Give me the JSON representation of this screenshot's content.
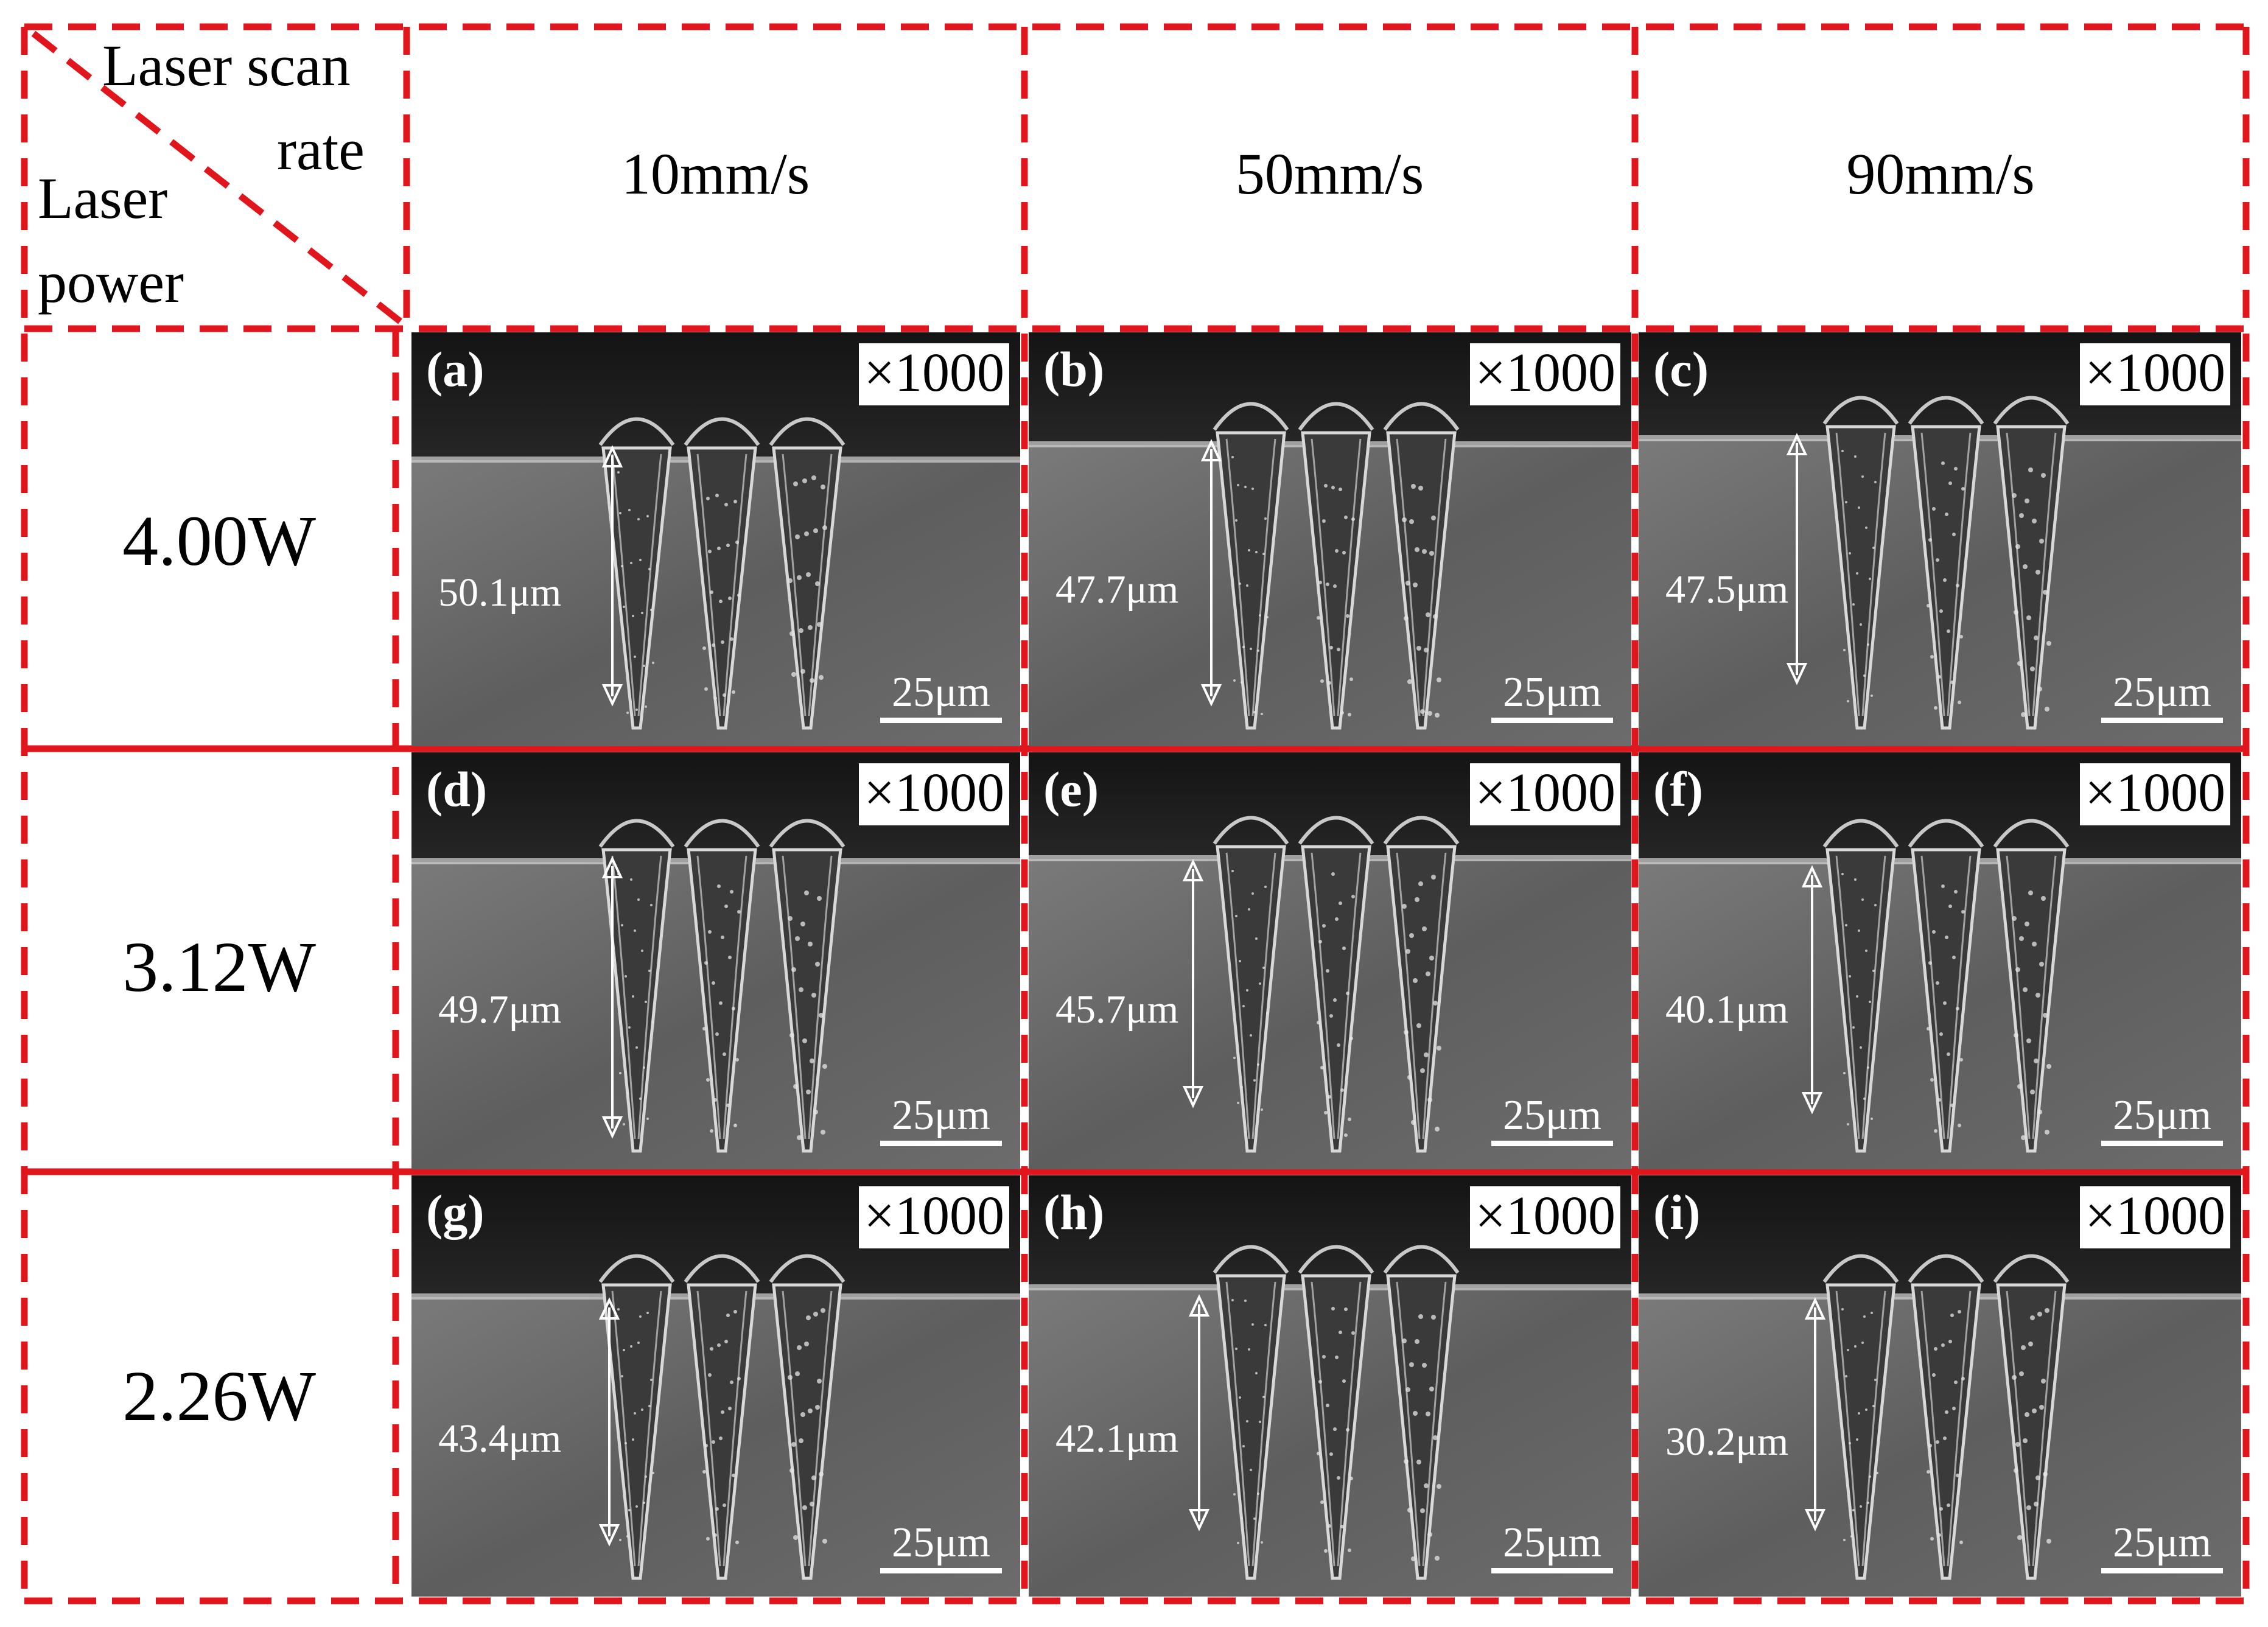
{
  "corner": {
    "row_header": "Laser scan",
    "row_header_2": "rate",
    "col_header": "Laser",
    "col_header_2": "power"
  },
  "scan_rates": [
    "10mm/s",
    "50mm/s",
    "90mm/s"
  ],
  "powers": [
    "4.00W",
    "3.12W",
    "2.26W"
  ],
  "panels": [
    {
      "label": "(a)",
      "mag": "×1000",
      "depth": "50.1μm",
      "scale": "25μm"
    },
    {
      "label": "(b)",
      "mag": "×1000",
      "depth": "47.7μm",
      "scale": "25μm"
    },
    {
      "label": "(c)",
      "mag": "×1000",
      "depth": "47.5μm",
      "scale": "25μm"
    },
    {
      "label": "(d)",
      "mag": "×1000",
      "depth": "49.7μm",
      "scale": "25μm"
    },
    {
      "label": "(e)",
      "mag": "×1000",
      "depth": "45.7μm",
      "scale": "25μm"
    },
    {
      "label": "(f)",
      "mag": "×1000",
      "depth": "40.1μm",
      "scale": "25μm"
    },
    {
      "label": "(g)",
      "mag": "×1000",
      "depth": "43.4μm",
      "scale": "25μm"
    },
    {
      "label": "(h)",
      "mag": "×1000",
      "depth": "42.1μm",
      "scale": "25μm"
    },
    {
      "label": "(i)",
      "mag": "×1000",
      "depth": "30.2μm",
      "scale": "25μm"
    }
  ],
  "colors": {
    "grid_red": "#e0161c",
    "panel_dark": "#1c1c1c",
    "panel_surface": "#6a6a6a"
  }
}
